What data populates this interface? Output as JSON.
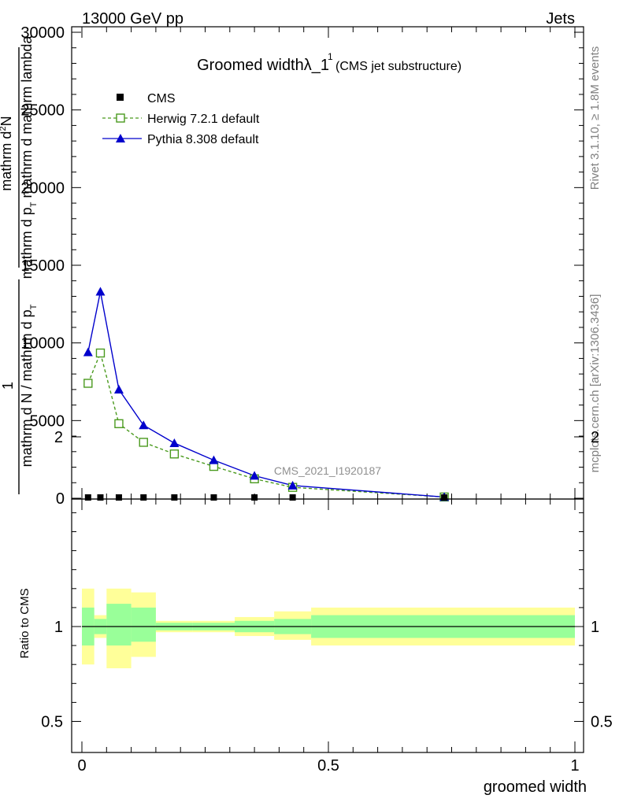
{
  "header": {
    "left": "13000 GeV pp",
    "right": "Jets"
  },
  "side_labels": {
    "rivet": "Rivet 3.1.10, ≥ 1.8M events",
    "mcplots": "mcplots.cern.ch [arXiv:1306.3436]"
  },
  "watermark": "CMS_2021_I1920187",
  "colors": {
    "herwig": "#4a9a1e",
    "pythia": "#0000cc",
    "cms": "#000000",
    "band_outer": "#ffff99",
    "band_inner": "#99ff99"
  },
  "chart_data": [
    {
      "type": "line",
      "title_main": "Groomed widthλ_1",
      "title_sup": "1",
      "title_sub": "(CMS jet substructure)",
      "ylabel_line1": "mathrm d",
      "ylabel_line1_sup": "2",
      "ylabel_line1b": "N",
      "ylabel_line2": "mathrm d p",
      "ylabel_line2_sub": "T",
      "ylabel_line2b": " mathrm d  mathrm lambda",
      "ylabel_num": "1",
      "ylabel_den": "mathrm d N / mathrm d p",
      "ylabel_den_sub": "T",
      "xlim": [
        0,
        1
      ],
      "ylim": [
        0,
        30000
      ],
      "yticks": [
        0,
        5000,
        10000,
        15000,
        20000,
        25000,
        30000
      ],
      "ytick_labels": [
        "0",
        "5000",
        "10000",
        "15000",
        "20000",
        "25000",
        "30000"
      ],
      "legend": [
        {
          "name": "CMS",
          "marker": "square"
        },
        {
          "name": "Herwig 7.2.1 default",
          "marker": "open-square"
        },
        {
          "name": "Pythia 8.308 default",
          "marker": "triangle"
        }
      ],
      "cms": {
        "x": [
          0.0125,
          0.0375,
          0.075,
          0.125,
          0.1875,
          0.2675,
          0.35,
          0.4275,
          0.735
        ],
        "y": [
          0,
          0,
          0,
          0,
          0,
          0,
          0,
          0,
          0
        ]
      },
      "herwig": {
        "x": [
          0.0125,
          0.0375,
          0.075,
          0.125,
          0.1875,
          0.2675,
          0.35,
          0.4275,
          0.735
        ],
        "y": [
          7400,
          9350,
          4800,
          3600,
          2850,
          2050,
          1250,
          700,
          80
        ]
      },
      "pythia": {
        "x": [
          0.0125,
          0.0375,
          0.075,
          0.125,
          0.1875,
          0.2675,
          0.35,
          0.4275,
          0.735
        ],
        "y": [
          9400,
          13300,
          7000,
          4700,
          3550,
          2450,
          1450,
          820,
          80
        ]
      }
    },
    {
      "type": "area",
      "ylabel": "Ratio to CMS",
      "ylim": [
        0.4,
        2.3
      ],
      "yticks": [
        0.5,
        1,
        2
      ],
      "ytick_labels": [
        "0.5",
        "1",
        "2"
      ],
      "xlabel": "groomed width",
      "xticks": [
        0,
        0.5,
        1
      ],
      "xtick_labels": [
        "0",
        "0.5",
        "1"
      ],
      "bins": [
        {
          "x0": 0.0,
          "x1": 0.025,
          "inner": [
            0.9,
            1.1
          ],
          "outer": [
            0.8,
            1.2
          ]
        },
        {
          "x0": 0.025,
          "x1": 0.05,
          "inner": [
            0.96,
            1.04
          ],
          "outer": [
            0.94,
            1.06
          ]
        },
        {
          "x0": 0.05,
          "x1": 0.1,
          "inner": [
            0.9,
            1.12
          ],
          "outer": [
            0.78,
            1.2
          ]
        },
        {
          "x0": 0.1,
          "x1": 0.15,
          "inner": [
            0.92,
            1.1
          ],
          "outer": [
            0.84,
            1.18
          ]
        },
        {
          "x0": 0.15,
          "x1": 0.225,
          "inner": [
            0.98,
            1.02
          ],
          "outer": [
            0.97,
            1.03
          ]
        },
        {
          "x0": 0.225,
          "x1": 0.31,
          "inner": [
            0.98,
            1.02
          ],
          "outer": [
            0.97,
            1.03
          ]
        },
        {
          "x0": 0.31,
          "x1": 0.39,
          "inner": [
            0.97,
            1.03
          ],
          "outer": [
            0.95,
            1.05
          ]
        },
        {
          "x0": 0.39,
          "x1": 0.465,
          "inner": [
            0.96,
            1.04
          ],
          "outer": [
            0.93,
            1.08
          ]
        },
        {
          "x0": 0.465,
          "x1": 1.0,
          "inner": [
            0.94,
            1.06
          ],
          "outer": [
            0.9,
            1.1
          ]
        }
      ]
    }
  ]
}
